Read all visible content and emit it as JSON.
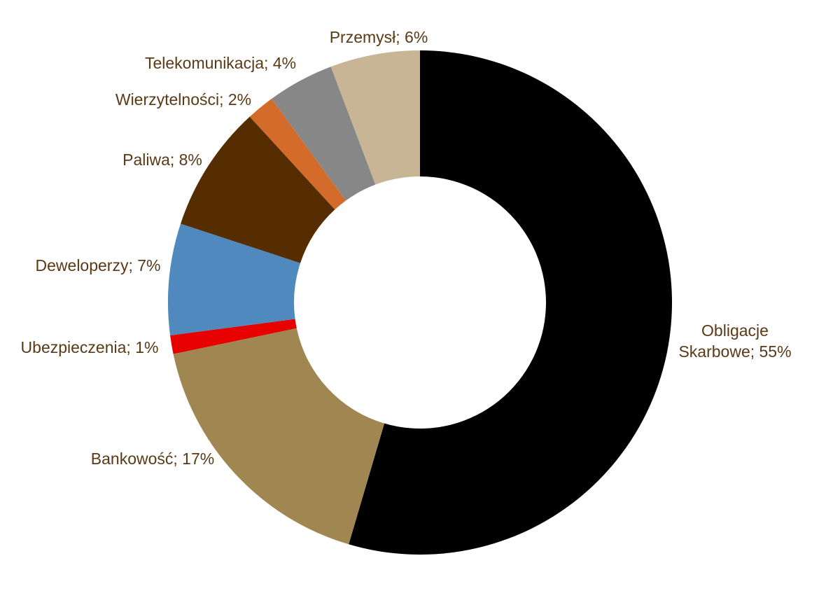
{
  "chart_data": {
    "type": "pie",
    "donut": true,
    "start_angle_deg": 0,
    "direction": "clockwise",
    "label_color": "#5A3A16",
    "label_separator": ";  ",
    "slices": [
      {
        "label": "Obligacje Skarbowe",
        "label_lines": [
          "Obligacje",
          "Skarbowe;  55%"
        ],
        "value": 55,
        "display": "55%",
        "color": "#000000"
      },
      {
        "label": "Bankowość",
        "label_lines": [
          "Bankowość;  17%"
        ],
        "value": 17.3,
        "display": "17%",
        "color": "#A08752"
      },
      {
        "label": "Ubezpieczenia",
        "label_lines": [
          "Ubezpieczenia;  1%"
        ],
        "value": 1.2,
        "display": "1%",
        "color": "#E60000"
      },
      {
        "label": "Deweloperzy",
        "label_lines": [
          "Deweloperzy;  7%"
        ],
        "value": 7.2,
        "display": "7%",
        "color": "#4F89BD"
      },
      {
        "label": "Paliwa",
        "label_lines": [
          "Paliwa;  8%"
        ],
        "value": 8.2,
        "display": "8%",
        "color": "#552D00"
      },
      {
        "label": "Wierzytelności",
        "label_lines": [
          "Wierzytelności;  2%"
        ],
        "value": 1.8,
        "display": "2%",
        "color": "#D36C2A"
      },
      {
        "label": "Telekomunikacja",
        "label_lines": [
          "Telekomunikacja;  4%"
        ],
        "value": 4.3,
        "display": "4%",
        "color": "#878787"
      },
      {
        "label": "Przemysł",
        "label_lines": [
          "Przemysł;  6%"
        ],
        "value": 5.8,
        "display": "6%",
        "color": "#C8B595"
      }
    ]
  }
}
